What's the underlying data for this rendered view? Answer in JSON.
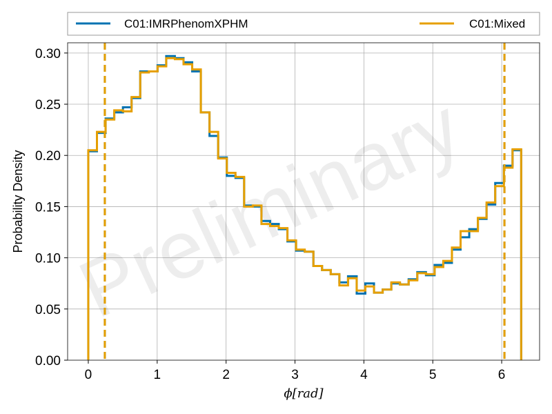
{
  "chart_data": {
    "type": "histogram-step",
    "xlabel": "ϕ[rad]",
    "ylabel": "Probability Density",
    "watermark": "Preliminary",
    "xlim": [
      -0.3,
      6.55
    ],
    "ylim": [
      0,
      0.31
    ],
    "xticks": [
      0,
      1,
      2,
      3,
      4,
      5,
      6
    ],
    "xtick_labels": [
      "0",
      "1",
      "2",
      "3",
      "4",
      "5",
      "6"
    ],
    "yticks": [
      0,
      0.05,
      0.1,
      0.15,
      0.2,
      0.25,
      0.3
    ],
    "ytick_labels": [
      "0.00",
      "0.05",
      "0.10",
      "0.15",
      "0.20",
      "0.25",
      "0.30"
    ],
    "grid": true,
    "legend_position": "top, above plot, 2 columns",
    "bin_edges": [
      0.0,
      0.1257,
      0.2513,
      0.377,
      0.5027,
      0.6283,
      0.754,
      0.8796,
      1.0053,
      1.131,
      1.2566,
      1.3823,
      1.508,
      1.6336,
      1.7593,
      1.885,
      2.0106,
      2.1363,
      2.2619,
      2.3876,
      2.5133,
      2.6389,
      2.7646,
      2.8903,
      3.0159,
      3.1416,
      3.2673,
      3.3929,
      3.5186,
      3.6442,
      3.7699,
      3.8956,
      4.0212,
      4.1469,
      4.2726,
      4.3982,
      4.5239,
      4.6496,
      4.7752,
      4.9009,
      5.0265,
      5.1522,
      5.2779,
      5.4035,
      5.5292,
      5.6549,
      5.7805,
      5.9062,
      6.0319,
      6.1575,
      6.2832
    ],
    "series": [
      {
        "name": "C01:IMRPhenomXPHM",
        "color": "#0072b2",
        "values": [
          0.204,
          0.222,
          0.236,
          0.242,
          0.247,
          0.256,
          0.282,
          0.282,
          0.288,
          0.297,
          0.295,
          0.291,
          0.282,
          0.242,
          0.219,
          0.198,
          0.18,
          0.178,
          0.151,
          0.15,
          0.136,
          0.133,
          0.128,
          0.116,
          0.107,
          0.106,
          0.092,
          0.088,
          0.084,
          0.076,
          0.082,
          0.065,
          0.075,
          0.066,
          0.069,
          0.075,
          0.074,
          0.079,
          0.086,
          0.083,
          0.093,
          0.095,
          0.108,
          0.12,
          0.128,
          0.138,
          0.152,
          0.173,
          0.19,
          0.205
        ],
        "credible_bounds": [
          0.24,
          6.04
        ]
      },
      {
        "name": "C01:Mixed",
        "color": "#e69f00",
        "values": [
          0.205,
          0.223,
          0.235,
          0.244,
          0.243,
          0.257,
          0.281,
          0.282,
          0.287,
          0.295,
          0.294,
          0.289,
          0.284,
          0.242,
          0.223,
          0.197,
          0.183,
          0.179,
          0.15,
          0.151,
          0.133,
          0.131,
          0.129,
          0.117,
          0.108,
          0.106,
          0.092,
          0.088,
          0.084,
          0.073,
          0.08,
          0.068,
          0.072,
          0.066,
          0.069,
          0.076,
          0.074,
          0.078,
          0.085,
          0.084,
          0.091,
          0.097,
          0.11,
          0.126,
          0.126,
          0.139,
          0.154,
          0.17,
          0.188,
          0.206
        ],
        "credible_bounds": [
          0.24,
          6.04
        ]
      }
    ]
  }
}
